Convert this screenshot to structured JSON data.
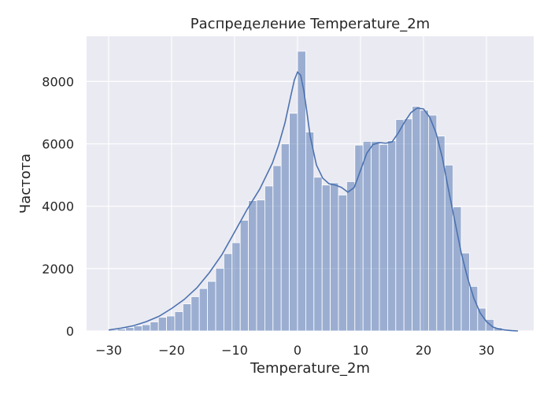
{
  "chart_data": {
    "type": "bar",
    "subtype": "histogram-with-kde",
    "title": "Распределение Temperature_2m",
    "xlabel": "Temperature_2m",
    "ylabel": "Частота",
    "xlim": [
      -33.5,
      37.5
    ],
    "ylim": [
      0,
      9450
    ],
    "xticks": [
      -30,
      -20,
      -10,
      0,
      10,
      20,
      30
    ],
    "yticks": [
      0,
      2000,
      4000,
      6000,
      8000
    ],
    "grid": true,
    "legend": "none",
    "bar_color": "#4c72b0",
    "bar_opacity": 0.5,
    "line_color": "#4c72b0",
    "plot_background": "#eaeaf2",
    "bins": [
      {
        "x0": -29.9,
        "x1": -28.6,
        "count": 30
      },
      {
        "x0": -28.6,
        "x1": -27.3,
        "count": 60
      },
      {
        "x0": -27.3,
        "x1": -26.0,
        "count": 110
      },
      {
        "x0": -26.0,
        "x1": -24.7,
        "count": 160
      },
      {
        "x0": -24.7,
        "x1": -23.4,
        "count": 200
      },
      {
        "x0": -23.4,
        "x1": -22.1,
        "count": 290
      },
      {
        "x0": -22.1,
        "x1": -20.8,
        "count": 440
      },
      {
        "x0": -20.8,
        "x1": -19.5,
        "count": 480
      },
      {
        "x0": -19.5,
        "x1": -18.2,
        "count": 620
      },
      {
        "x0": -18.2,
        "x1": -16.9,
        "count": 870
      },
      {
        "x0": -16.9,
        "x1": -15.6,
        "count": 1100
      },
      {
        "x0": -15.6,
        "x1": -14.3,
        "count": 1360
      },
      {
        "x0": -14.3,
        "x1": -13.0,
        "count": 1590
      },
      {
        "x0": -13.0,
        "x1": -11.7,
        "count": 2010
      },
      {
        "x0": -11.7,
        "x1": -10.4,
        "count": 2480
      },
      {
        "x0": -10.4,
        "x1": -9.1,
        "count": 2830
      },
      {
        "x0": -9.1,
        "x1": -7.8,
        "count": 3550
      },
      {
        "x0": -7.8,
        "x1": -6.5,
        "count": 4180
      },
      {
        "x0": -6.5,
        "x1": -5.2,
        "count": 4200
      },
      {
        "x0": -5.2,
        "x1": -3.9,
        "count": 4650
      },
      {
        "x0": -3.9,
        "x1": -2.6,
        "count": 5300
      },
      {
        "x0": -2.6,
        "x1": -1.3,
        "count": 6000
      },
      {
        "x0": -1.3,
        "x1": 0.0,
        "count": 6980
      },
      {
        "x0": 0.0,
        "x1": 1.3,
        "count": 8970
      },
      {
        "x0": 1.3,
        "x1": 2.6,
        "count": 6380
      },
      {
        "x0": 2.6,
        "x1": 3.9,
        "count": 4930
      },
      {
        "x0": 3.9,
        "x1": 5.2,
        "count": 4680
      },
      {
        "x0": 5.2,
        "x1": 6.5,
        "count": 4750
      },
      {
        "x0": 6.5,
        "x1": 7.8,
        "count": 4360
      },
      {
        "x0": 7.8,
        "x1": 9.1,
        "count": 4790
      },
      {
        "x0": 9.1,
        "x1": 10.4,
        "count": 5960
      },
      {
        "x0": 10.4,
        "x1": 11.7,
        "count": 6080
      },
      {
        "x0": 11.7,
        "x1": 13.0,
        "count": 6080
      },
      {
        "x0": 13.0,
        "x1": 14.3,
        "count": 5980
      },
      {
        "x0": 14.3,
        "x1": 15.6,
        "count": 6100
      },
      {
        "x0": 15.6,
        "x1": 16.9,
        "count": 6780
      },
      {
        "x0": 16.9,
        "x1": 18.2,
        "count": 6800
      },
      {
        "x0": 18.2,
        "x1": 19.5,
        "count": 7200
      },
      {
        "x0": 19.5,
        "x1": 20.8,
        "count": 7080
      },
      {
        "x0": 20.8,
        "x1": 22.1,
        "count": 6920
      },
      {
        "x0": 22.1,
        "x1": 23.4,
        "count": 6250
      },
      {
        "x0": 23.4,
        "x1": 24.7,
        "count": 5320
      },
      {
        "x0": 24.7,
        "x1": 26.0,
        "count": 3980
      },
      {
        "x0": 26.0,
        "x1": 27.3,
        "count": 2500
      },
      {
        "x0": 27.3,
        "x1": 28.6,
        "count": 1430
      },
      {
        "x0": 28.6,
        "x1": 29.9,
        "count": 730
      },
      {
        "x0": 29.9,
        "x1": 31.2,
        "count": 370
      },
      {
        "x0": 31.2,
        "x1": 32.5,
        "count": 110
      }
    ],
    "kde": {
      "x": [
        -30,
        -28,
        -26,
        -24,
        -22,
        -20,
        -18,
        -16,
        -14,
        -12,
        -10,
        -8,
        -6,
        -4,
        -3,
        -2,
        -1,
        -0.5,
        0,
        0.5,
        1,
        1.5,
        2,
        3,
        4,
        5,
        6,
        7,
        8,
        9,
        10,
        11,
        12,
        13,
        14,
        15,
        16,
        17,
        18,
        19,
        20,
        21,
        22,
        23,
        24,
        25,
        26,
        27,
        28,
        29,
        30,
        31,
        32,
        33,
        34,
        35
      ],
      "y": [
        30,
        90,
        170,
        300,
        470,
        720,
        1010,
        1380,
        1870,
        2450,
        3170,
        3900,
        4550,
        5380,
        5960,
        6670,
        7600,
        8050,
        8300,
        8200,
        7700,
        7000,
        6250,
        5320,
        4900,
        4720,
        4680,
        4600,
        4450,
        4600,
        5150,
        5700,
        5980,
        6040,
        6020,
        6060,
        6350,
        6700,
        7000,
        7150,
        7120,
        6850,
        6350,
        5550,
        4500,
        3500,
        2500,
        1700,
        1050,
        580,
        300,
        130,
        60,
        30,
        10,
        0
      ]
    }
  }
}
